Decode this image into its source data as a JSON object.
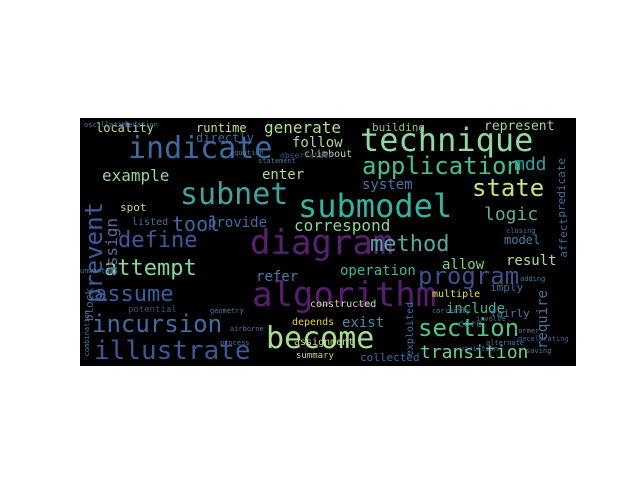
{
  "wordcloud": {
    "background": "#000000",
    "words": [
      {
        "text": "diagram",
        "color": "#5a1f73"
      },
      {
        "text": "algorithm",
        "color": "#581d6e"
      },
      {
        "text": "technique",
        "color": "#8fd9a0"
      },
      {
        "text": "indicate",
        "color": "#3e6aa4"
      },
      {
        "text": "submodel",
        "color": "#33b4a0"
      },
      {
        "text": "become",
        "color": "#a6df8f"
      },
      {
        "text": "application",
        "color": "#43c08f"
      },
      {
        "text": "subnet",
        "color": "#3fa39f"
      },
      {
        "text": "program",
        "color": "#3c508e"
      },
      {
        "text": "incursion",
        "color": "#3f6ea7"
      },
      {
        "text": "illustrate",
        "color": "#3a5a97"
      },
      {
        "text": "section",
        "color": "#4fc788"
      },
      {
        "text": "attempt",
        "color": "#84d898"
      },
      {
        "text": "assume",
        "color": "#3a5f9c"
      },
      {
        "text": "state",
        "color": "#c8e27c"
      },
      {
        "text": "prevent",
        "color": "#3f5ca0"
      },
      {
        "text": "define",
        "color": "#3f5a9c"
      },
      {
        "text": "method",
        "color": "#57a8a1"
      },
      {
        "text": "correspond",
        "color": "#83d995"
      },
      {
        "text": "transition",
        "color": "#6bd28f"
      },
      {
        "text": "tool",
        "color": "#3f68a2"
      },
      {
        "text": "logic",
        "color": "#5ab09c"
      },
      {
        "text": "example",
        "color": "#93d79b"
      },
      {
        "text": "generate",
        "color": "#b2df90"
      },
      {
        "text": "follow",
        "color": "#a8dc96"
      },
      {
        "text": "mdd",
        "color": "#2fa3a0"
      },
      {
        "text": "system",
        "color": "#4b73a5"
      },
      {
        "text": "provide",
        "color": "#3f6ea7"
      },
      {
        "text": "refer",
        "color": "#3f7fa7"
      },
      {
        "text": "operation",
        "color": "#3fb596"
      },
      {
        "text": "allow",
        "color": "#7ed38f"
      },
      {
        "text": "result",
        "color": "#b8de8c"
      },
      {
        "text": "exist",
        "color": "#4b8aa6"
      },
      {
        "text": "include",
        "color": "#44b79b"
      },
      {
        "text": "require",
        "color": "#4a74a6"
      },
      {
        "text": "model",
        "color": "#3f82a6"
      },
      {
        "text": "enter",
        "color": "#a9df90"
      },
      {
        "text": "locality",
        "color": "#b6df8a"
      },
      {
        "text": "runtime",
        "color": "#c4e48a"
      },
      {
        "text": "directly",
        "color": "#3f68a2"
      },
      {
        "text": "building",
        "color": "#8bc86e"
      },
      {
        "text": "represent",
        "color": "#9fd98d"
      },
      {
        "text": "climbout",
        "color": "#c2dc9f"
      },
      {
        "text": "collected",
        "color": "#3a6ba0"
      },
      {
        "text": "summary",
        "color": "#c7d66e"
      },
      {
        "text": "depends",
        "color": "#e0d24a"
      },
      {
        "text": "constructed",
        "color": "#bfe091"
      },
      {
        "text": "assignment",
        "color": "#cfd98c"
      },
      {
        "text": "exploited",
        "color": "#3d72a4"
      },
      {
        "text": "multiple",
        "color": "#e6e250"
      },
      {
        "text": "core",
        "color": "#3b7ca0"
      },
      {
        "text": "imply",
        "color": "#3a6fa4"
      },
      {
        "text": "fairly",
        "color": "#4a7aa4"
      },
      {
        "text": "spot",
        "color": "#b7dd8c"
      },
      {
        "text": "listed",
        "color": "#4a6fa6"
      },
      {
        "text": "block",
        "color": "#4a6aa0"
      },
      {
        "text": "assign",
        "color": "#5f6aa0"
      },
      {
        "text": "predicate",
        "color": "#4a6aa0"
      },
      {
        "text": "affect",
        "color": "#4a6aa0"
      },
      {
        "text": "decelerating",
        "color": "#3b6a9f"
      },
      {
        "text": "potential",
        "color": "#3b4e8c"
      },
      {
        "text": "observation",
        "color": "#3e5795"
      },
      {
        "text": "former",
        "color": "#4c78a0"
      },
      {
        "text": "airborne",
        "color": "#4c78a0"
      },
      {
        "text": "geometry",
        "color": "#4c78a0"
      },
      {
        "text": "equation",
        "color": "#4c78a0"
      },
      {
        "text": "statement",
        "color": "#4c78a0"
      },
      {
        "text": "oscillating",
        "color": "#4c78a0"
      },
      {
        "text": "process",
        "color": "#4c78a0"
      },
      {
        "text": "involve",
        "color": "#4c78a0"
      },
      {
        "text": "correctly",
        "color": "#4c78a0"
      },
      {
        "text": "closing",
        "color": "#4c78a0"
      },
      {
        "text": "adding",
        "color": "#4c78a0"
      },
      {
        "text": "saving",
        "color": "#4c78a0"
      },
      {
        "text": "variation",
        "color": "#4c78a0"
      },
      {
        "text": "alternate",
        "color": "#4c78a0"
      },
      {
        "text": "combination",
        "color": "#4c78a0"
      },
      {
        "text": "unwanted",
        "color": "#4c78a0"
      },
      {
        "text": "elevation",
        "color": "#4c78a0"
      }
    ]
  }
}
